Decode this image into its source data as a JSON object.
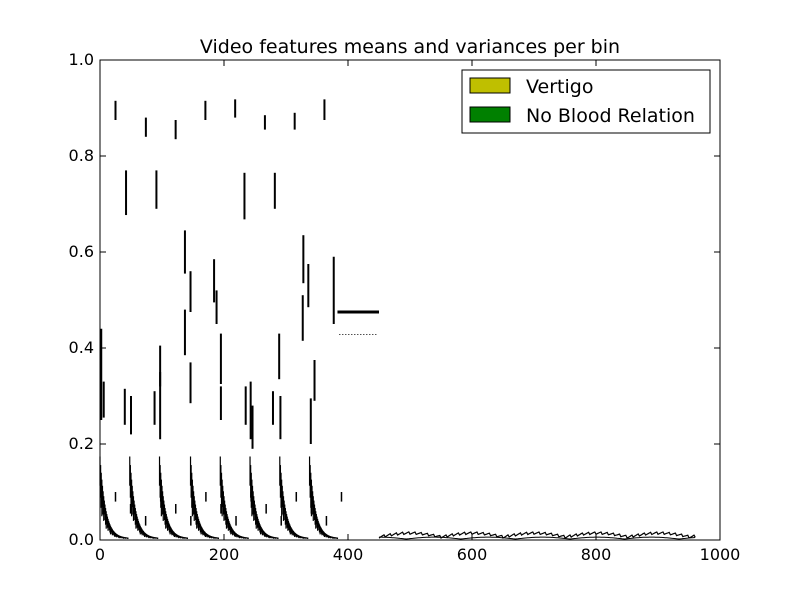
{
  "chart_data": {
    "type": "bar",
    "title": "Video features means and variances per bin",
    "xlabel": "",
    "ylabel": "",
    "xlim": [
      0,
      1000
    ],
    "ylim": [
      0,
      1
    ],
    "xticks": [
      "0",
      "200",
      "400",
      "600",
      "800",
      "1000"
    ],
    "yticks": [
      "0.0",
      "0.2",
      "0.4",
      "0.6",
      "0.8",
      "1.0"
    ],
    "grid": false,
    "legend": {
      "position": "top-right",
      "entries": [
        {
          "label": "Vertigo",
          "color": "#bfbf00"
        },
        {
          "label": "No Blood Relation",
          "color": "#008000"
        }
      ]
    },
    "series": [
      {
        "name": "Vertigo",
        "color": "#bfbf00",
        "segments": [
          {
            "x": 25,
            "y0": 0.875,
            "y1": 0.915
          },
          {
            "x": 74,
            "y0": 0.84,
            "y1": 0.88
          },
          {
            "x": 122,
            "y0": 0.835,
            "y1": 0.875
          },
          {
            "x": 170,
            "y0": 0.875,
            "y1": 0.915
          },
          {
            "x": 218,
            "y0": 0.88,
            "y1": 0.918
          },
          {
            "x": 266,
            "y0": 0.855,
            "y1": 0.885
          },
          {
            "x": 314,
            "y0": 0.855,
            "y1": 0.89
          },
          {
            "x": 362,
            "y0": 0.875,
            "y1": 0.918
          },
          {
            "x": 42,
            "y0": 0.677,
            "y1": 0.77
          },
          {
            "x": 91,
            "y0": 0.69,
            "y1": 0.77
          },
          {
            "x": 233,
            "y0": 0.668,
            "y1": 0.765
          },
          {
            "x": 282,
            "y0": 0.69,
            "y1": 0.765
          },
          {
            "x": 137,
            "y0": 0.555,
            "y1": 0.645
          },
          {
            "x": 146,
            "y0": 0.475,
            "y1": 0.56
          },
          {
            "x": 184,
            "y0": 0.495,
            "y1": 0.585
          },
          {
            "x": 328,
            "y0": 0.535,
            "y1": 0.635
          },
          {
            "x": 336,
            "y0": 0.485,
            "y1": 0.575
          },
          {
            "x": 188,
            "y0": 0.45,
            "y1": 0.52
          },
          {
            "x": 327,
            "y0": 0.415,
            "y1": 0.51
          },
          {
            "x": 377,
            "y0": 0.45,
            "y1": 0.59
          },
          {
            "x": 137,
            "y0": 0.385,
            "y1": 0.48
          },
          {
            "x": 195,
            "y0": 0.325,
            "y1": 0.43
          },
          {
            "x": 289,
            "y0": 0.335,
            "y1": 0.43
          },
          {
            "x": 97,
            "y0": 0.32,
            "y1": 0.405
          },
          {
            "x": 346,
            "y0": 0.29,
            "y1": 0.375
          },
          {
            "x": 2,
            "y0": 0.25,
            "y1": 0.44
          },
          {
            "x": 6,
            "y0": 0.255,
            "y1": 0.33
          },
          {
            "x": 40,
            "y0": 0.24,
            "y1": 0.315
          },
          {
            "x": 50,
            "y0": 0.22,
            "y1": 0.3
          },
          {
            "x": 88,
            "y0": 0.24,
            "y1": 0.31
          },
          {
            "x": 97,
            "y0": 0.21,
            "y1": 0.35
          },
          {
            "x": 146,
            "y0": 0.285,
            "y1": 0.37
          },
          {
            "x": 195,
            "y0": 0.25,
            "y1": 0.32
          },
          {
            "x": 235,
            "y0": 0.24,
            "y1": 0.32
          },
          {
            "x": 243,
            "y0": 0.21,
            "y1": 0.33
          },
          {
            "x": 246,
            "y0": 0.19,
            "y1": 0.28
          },
          {
            "x": 279,
            "y0": 0.24,
            "y1": 0.31
          },
          {
            "x": 291,
            "y0": 0.21,
            "y1": 0.3
          },
          {
            "x": 340,
            "y0": 0.2,
            "y1": 0.295
          }
        ]
      },
      {
        "name": "No Blood Relation",
        "color": "#008000",
        "segments": []
      }
    ]
  }
}
